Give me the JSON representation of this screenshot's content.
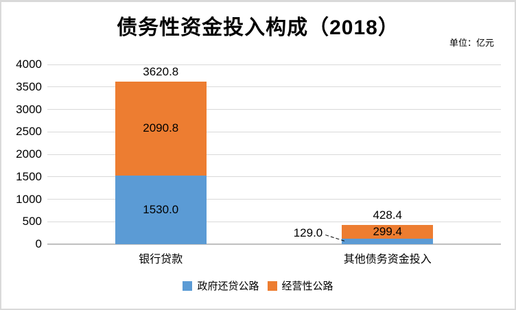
{
  "header": {
    "title": "债务性资金投入构成（2018）",
    "unit_label": "单位：亿元"
  },
  "chart_data": {
    "type": "bar",
    "stacked": true,
    "title": "债务性资金投入构成（2018）",
    "unit_label": "单位：亿元",
    "categories": [
      "银行贷款",
      "其他债务资金投入"
    ],
    "series": [
      {
        "name": "政府还贷公路",
        "color": "#5b9bd5",
        "values": [
          1530.0,
          129.0
        ],
        "labels": [
          "1530.0",
          "129.0"
        ]
      },
      {
        "name": "经营性公路",
        "color": "#ed7d31",
        "values": [
          2090.8,
          299.4
        ],
        "labels": [
          "2090.8",
          "299.4"
        ]
      }
    ],
    "totals": [
      3620.8,
      428.4
    ],
    "total_labels": [
      "3620.8",
      "428.4"
    ],
    "ylim": [
      0,
      4000
    ],
    "ytick_step": 500,
    "grid": true,
    "legend_position": "bottom"
  }
}
